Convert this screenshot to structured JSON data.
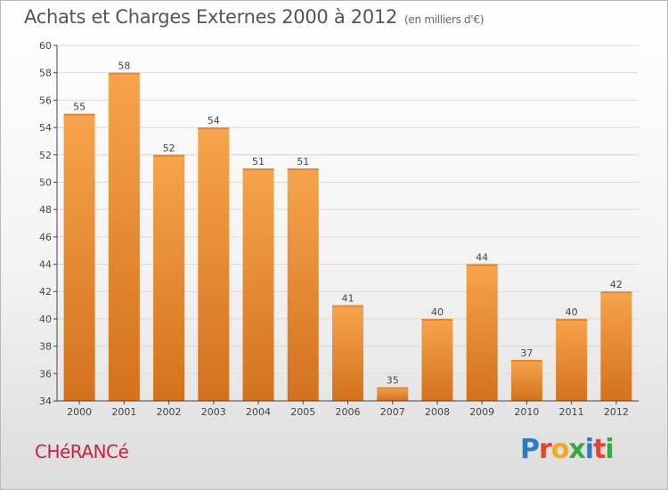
{
  "header": {
    "title": "Achats et Charges Externes 2000 à 2012",
    "subtitle": "(en milliers d'€)"
  },
  "footer": {
    "commune": "CHéRANCé",
    "logo_letters": [
      "P",
      "r",
      "o",
      "x",
      "i",
      "t",
      "i"
    ],
    "logo_colors": [
      "#2b7cc3",
      "#e8412e",
      "#f6a623",
      "#3aa845",
      "#2b7cc3",
      "#e8412e",
      "#3aa845"
    ]
  },
  "colors": {
    "bar_top": "#f6a44d",
    "bar_bottom": "#d4711c",
    "axis": "#444444",
    "grid": "#d9d9d9"
  },
  "chart_data": {
    "type": "bar",
    "title": "Achats et Charges Externes 2000 à 2012",
    "subtitle": "(en milliers d'€)",
    "categories": [
      "2000",
      "2001",
      "2002",
      "2003",
      "2004",
      "2005",
      "2006",
      "2007",
      "2008",
      "2009",
      "2010",
      "2011",
      "2012"
    ],
    "values": [
      55,
      58,
      52,
      54,
      51,
      51,
      41,
      35,
      40,
      44,
      37,
      40,
      42
    ],
    "ylim": [
      34,
      60
    ],
    "yticks": [
      34,
      36,
      38,
      40,
      42,
      44,
      46,
      48,
      50,
      52,
      54,
      56,
      58,
      60
    ],
    "xlabel": "",
    "ylabel": "",
    "grid": true,
    "legend": "none"
  }
}
